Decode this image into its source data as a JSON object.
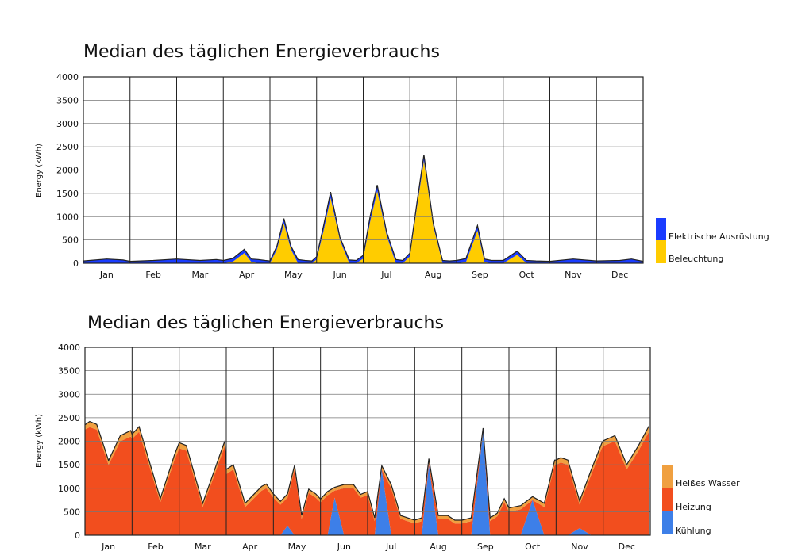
{
  "chart_data": [
    {
      "type": "area",
      "title": "Median des täglichen Energieverbrauchs",
      "xlabel": "",
      "ylabel": "Energy (kWh)",
      "ylim": [
        0,
        4000
      ],
      "yticks": [
        0,
        500,
        1000,
        1500,
        2000,
        2500,
        3000,
        3500,
        4000
      ],
      "categories": [
        "Jan",
        "Feb",
        "Mar",
        "Apr",
        "May",
        "Jun",
        "Jul",
        "Aug",
        "Sep",
        "Oct",
        "Nov",
        "Dec"
      ],
      "grid": true,
      "legend_position": "right",
      "stacked": true,
      "x": [
        0,
        0.5,
        0.85,
        1,
        1.5,
        2,
        2.5,
        2.85,
        3,
        3.2,
        3.45,
        3.6,
        3.75,
        3.9,
        4,
        4.15,
        4.3,
        4.45,
        4.6,
        4.75,
        4.9,
        5,
        5.15,
        5.3,
        5.5,
        5.7,
        5.85,
        6,
        6.15,
        6.3,
        6.5,
        6.7,
        6.85,
        7,
        7.15,
        7.3,
        7.5,
        7.7,
        7.85,
        8,
        8.2,
        8.45,
        8.6,
        8.75,
        9,
        9.3,
        9.5,
        9.7,
        10,
        10.5,
        11,
        11.5,
        11.75,
        12
      ],
      "series": [
        {
          "name": "Beleuchtung",
          "color": "#ffcc00",
          "values": [
            0,
            0,
            0,
            0,
            0,
            0,
            0,
            0,
            0,
            30,
            220,
            30,
            0,
            0,
            0,
            300,
            850,
            300,
            0,
            0,
            0,
            80,
            700,
            1400,
            500,
            0,
            0,
            100,
            900,
            1550,
            600,
            0,
            0,
            150,
            1200,
            2200,
            800,
            0,
            0,
            0,
            20,
            700,
            20,
            0,
            0,
            180,
            0,
            0,
            0,
            0,
            0,
            0,
            0,
            0
          ]
        },
        {
          "name": "Elektrische Ausrüstung",
          "color": "#1a3cff",
          "values": [
            50,
            90,
            70,
            40,
            60,
            90,
            60,
            80,
            60,
            70,
            80,
            60,
            80,
            60,
            50,
            70,
            110,
            70,
            80,
            60,
            50,
            60,
            110,
            130,
            60,
            70,
            60,
            70,
            120,
            130,
            70,
            80,
            60,
            70,
            100,
            130,
            70,
            60,
            50,
            60,
            80,
            110,
            70,
            60,
            60,
            80,
            60,
            50,
            40,
            90,
            50,
            60,
            90,
            40
          ]
        }
      ]
    },
    {
      "type": "area",
      "title": "Median des täglichen Energieverbrauchs",
      "xlabel": "",
      "ylabel": "Energy (kWh)",
      "ylim": [
        0,
        4000
      ],
      "yticks": [
        0,
        500,
        1000,
        1500,
        2000,
        2500,
        3000,
        3500,
        4000
      ],
      "categories": [
        "Jan",
        "Feb",
        "Mar",
        "Apr",
        "May",
        "Jun",
        "Jul",
        "Aug",
        "Sep",
        "Oct",
        "Nov",
        "Dec"
      ],
      "grid": true,
      "legend_position": "right",
      "stacked": true,
      "x": [
        0,
        0.1,
        0.25,
        0.5,
        0.75,
        0.97,
        1.0,
        1.15,
        1.3,
        1.6,
        1.9,
        2.0,
        2.15,
        2.5,
        2.97,
        3.0,
        3.15,
        3.4,
        3.75,
        3.85,
        4.0,
        4.15,
        4.3,
        4.45,
        4.6,
        4.75,
        4.9,
        5.0,
        5.15,
        5.3,
        5.5,
        5.7,
        5.85,
        6.0,
        6.15,
        6.3,
        6.5,
        6.7,
        6.85,
        7.0,
        7.15,
        7.3,
        7.5,
        7.7,
        7.85,
        8.0,
        8.2,
        8.45,
        8.6,
        8.75,
        8.9,
        9.0,
        9.25,
        9.5,
        9.75,
        9.97,
        10.0,
        10.1,
        10.25,
        10.5,
        10.75,
        10.97,
        11.0,
        11.25,
        11.5,
        11.75,
        11.97
      ],
      "series": [
        {
          "name": "Kühlung",
          "color": "#3d7fe8",
          "values": [
            0,
            0,
            0,
            0,
            0,
            0,
            0,
            0,
            0,
            0,
            0,
            0,
            0,
            0,
            0,
            0,
            0,
            0,
            0,
            0,
            0,
            0,
            200,
            0,
            0,
            0,
            0,
            0,
            0,
            800,
            0,
            0,
            0,
            0,
            0,
            1400,
            0,
            0,
            0,
            0,
            0,
            1500,
            0,
            0,
            0,
            0,
            0,
            2200,
            0,
            0,
            0,
            0,
            0,
            750,
            0,
            0,
            0,
            0,
            0,
            150,
            0,
            0,
            0,
            0,
            0,
            0,
            0
          ]
        },
        {
          "name": "Heizung",
          "color": "#f24e1e",
          "values": [
            2250,
            2300,
            2250,
            1500,
            2000,
            2100,
            2050,
            2200,
            1700,
            700,
            1600,
            1850,
            1800,
            600,
            1900,
            1300,
            1400,
            600,
            950,
            1000,
            800,
            650,
            600,
            1400,
            350,
            900,
            800,
            700,
            850,
            150,
            1000,
            1000,
            800,
            850,
            300,
            0,
            1000,
            350,
            300,
            250,
            300,
            50,
            350,
            350,
            250,
            250,
            300,
            0,
            300,
            400,
            700,
            500,
            550,
            0,
            600,
            1500,
            1500,
            1550,
            1500,
            500,
            1300,
            1850,
            1900,
            2000,
            1400,
            1800,
            2200
          ]
        },
        {
          "name": "Heißes Wasser",
          "color": "#f0a040",
          "values": [
            100,
            120,
            110,
            90,
            120,
            130,
            100,
            110,
            100,
            80,
            110,
            120,
            110,
            80,
            110,
            100,
            100,
            80,
            90,
            90,
            80,
            70,
            80,
            90,
            70,
            80,
            80,
            70,
            80,
            70,
            80,
            80,
            70,
            80,
            70,
            80,
            80,
            70,
            70,
            70,
            70,
            80,
            70,
            70,
            70,
            70,
            70,
            80,
            70,
            70,
            80,
            80,
            80,
            70,
            80,
            100,
            100,
            100,
            100,
            80,
            100,
            110,
            110,
            120,
            100,
            110,
            120
          ]
        }
      ]
    }
  ]
}
